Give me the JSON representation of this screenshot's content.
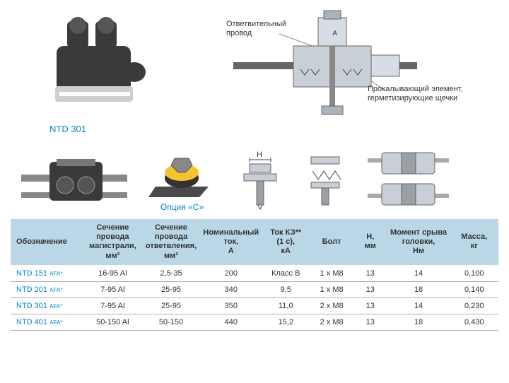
{
  "top": {
    "product_caption": "NTD 301",
    "label_branch": "Ответвительный\nпровод",
    "label_pierce": "Прокалывающий элемент,\nгерметизирующие щечки"
  },
  "mid": {
    "option_caption": "Опция «C»",
    "dim_label": "H"
  },
  "table": {
    "header_bg": "#b9d7e6",
    "row_border": "#b0b0b0",
    "link_color": "#0088cc",
    "columns": [
      "Обозначение",
      "Сечение\nпровода\nмагистрали,\nмм²",
      "Сечение\nпровода\nответвления,\nмм²",
      "Номинальный\nток,\nА",
      "Ток КЗ**\n(1 с),\nкА",
      "Болт",
      "H,\nмм",
      "Момент срыва\nголовки,\nНм",
      "Масса,\nкг"
    ],
    "rows": [
      {
        "model": "NTD 151",
        "suffix": "AFA*",
        "main": "16-95 Al",
        "branch": "2,5-35",
        "inom": "200",
        "isc": "Класс B",
        "bolt": "1 x M8",
        "h": "13",
        "torque": "14",
        "mass": "0,100"
      },
      {
        "model": "NTD 201",
        "suffix": "AFA*",
        "main": "7-95 Al",
        "branch": "25-95",
        "inom": "340",
        "isc": "9,5",
        "bolt": "1 x M8",
        "h": "13",
        "torque": "18",
        "mass": "0,140"
      },
      {
        "model": "NTD 301",
        "suffix": "AFA*",
        "main": "7-95 Al",
        "branch": "25-95",
        "inom": "350",
        "isc": "11,0",
        "bolt": "2 x M8",
        "h": "13",
        "torque": "14",
        "mass": "0,230"
      },
      {
        "model": "NTD 401",
        "suffix": "AFA*",
        "main": "50-150 Al",
        "branch": "50-150",
        "inom": "440",
        "isc": "15,2",
        "bolt": "2 x M8",
        "h": "13",
        "torque": "18",
        "mass": "0,430"
      }
    ],
    "col_widths_pct": [
      15,
      12,
      12,
      12,
      10,
      9,
      7,
      13,
      10
    ]
  }
}
